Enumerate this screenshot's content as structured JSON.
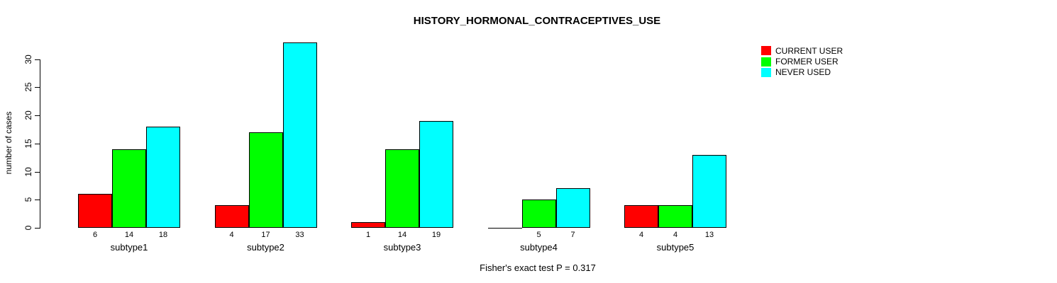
{
  "chart_data": {
    "type": "bar",
    "title": "HISTORY_HORMONAL_CONTRACEPTIVES_USE",
    "ylabel": "number of cases",
    "annotation": "Fisher's exact test P = 0.317",
    "categories": [
      "subtype1",
      "subtype2",
      "subtype3",
      "subtype4",
      "subtype5"
    ],
    "series": [
      {
        "name": "CURRENT USER",
        "color": "#ff0000",
        "values": [
          6,
          4,
          1,
          0,
          4
        ]
      },
      {
        "name": "FORMER USER",
        "color": "#00ff00",
        "values": [
          14,
          17,
          14,
          5,
          4
        ]
      },
      {
        "name": "NEVER USED",
        "color": "#00ffff",
        "values": [
          18,
          33,
          19,
          7,
          13
        ]
      }
    ],
    "yticks": [
      0,
      5,
      10,
      15,
      20,
      25,
      30
    ],
    "ylim": [
      0,
      33
    ],
    "grid": false,
    "legend_position": "top-right",
    "bar_value_labels_shown_for_zero": false
  }
}
